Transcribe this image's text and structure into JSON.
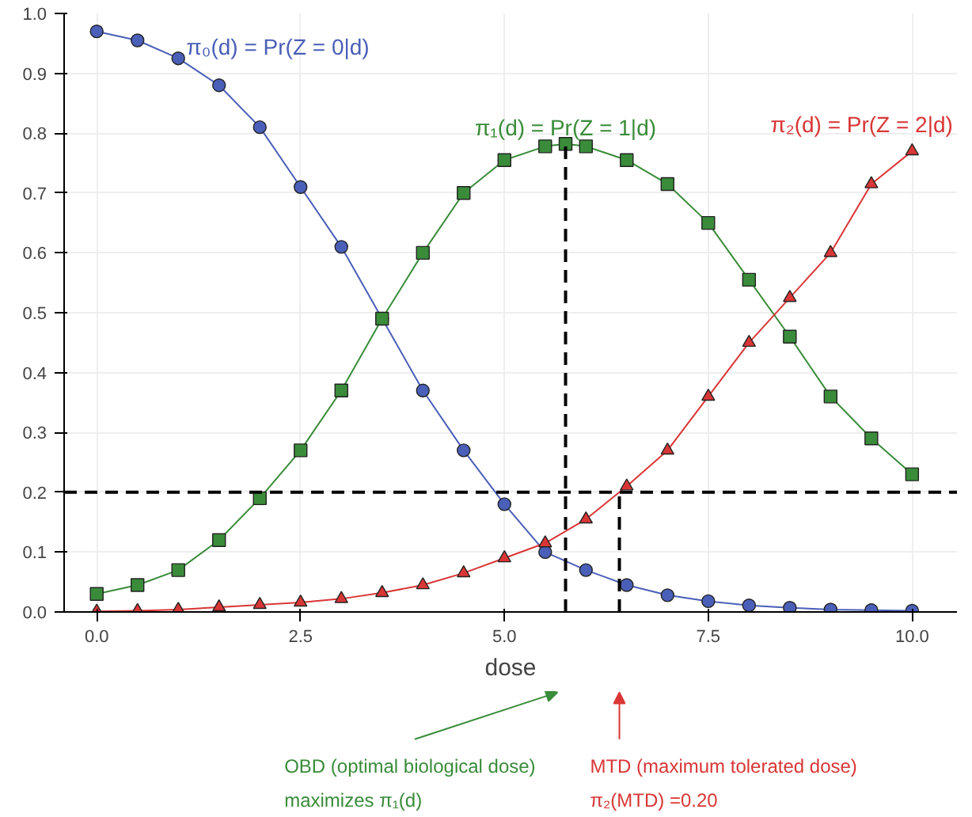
{
  "chart_data": {
    "type": "line",
    "xlabel": "dose",
    "xlim": [
      -0.4,
      10.55
    ],
    "ylim": [
      0,
      1.0
    ],
    "xticks": [
      {
        "value": 0,
        "label": "0.0"
      },
      2.5,
      {
        "value": 5,
        "label": "5.0"
      },
      7.5,
      {
        "value": 10,
        "label": "10.0"
      }
    ],
    "yticks": [
      {
        "value": 0,
        "label": "0.0"
      },
      0.1,
      0.2,
      0.3,
      0.4,
      0.5,
      0.6,
      0.7,
      0.8,
      0.9,
      {
        "value": 1,
        "label": "1.0"
      }
    ],
    "grid": true,
    "series": [
      {
        "name": "π₀(d) = Pr(Z = 0|d)",
        "color": "#4a5fb8",
        "marker": "circle",
        "x": [
          0,
          0.5,
          1,
          1.5,
          2,
          2.5,
          3,
          3.5,
          4,
          4.5,
          5,
          5.5,
          6,
          6.5,
          7,
          7.5,
          8,
          8.5,
          9,
          9.5,
          10
        ],
        "values": [
          0.97,
          0.955,
          0.925,
          0.88,
          0.81,
          0.71,
          0.61,
          0.49,
          0.37,
          0.27,
          0.18,
          0.1,
          0.07,
          0.045,
          0.028,
          0.018,
          0.011,
          0.007,
          0.004,
          0.003,
          0.002
        ]
      },
      {
        "name": "π₁(d) = Pr(Z = 1|d)",
        "color": "#3a8c3a",
        "marker": "square",
        "x": [
          0,
          0.5,
          1,
          1.5,
          2,
          2.5,
          3,
          3.5,
          4,
          4.5,
          5,
          5.5,
          5.75,
          6,
          6.5,
          7,
          7.5,
          8,
          8.5,
          9,
          9.5,
          10
        ],
        "values": [
          0.03,
          0.045,
          0.07,
          0.12,
          0.19,
          0.27,
          0.37,
          0.49,
          0.6,
          0.7,
          0.755,
          0.778,
          0.782,
          0.778,
          0.755,
          0.715,
          0.65,
          0.555,
          0.46,
          0.36,
          0.29,
          0.23
        ]
      },
      {
        "name": "π₂(d) = Pr(Z = 2|d)",
        "color": "#d93636",
        "marker": "triangle",
        "x": [
          0,
          0.5,
          1,
          1.5,
          2,
          2.5,
          3,
          3.5,
          4,
          4.5,
          5,
          5.5,
          6,
          6.5,
          7,
          7.5,
          8,
          8.5,
          9,
          9.5,
          10
        ],
        "values": [
          0.001,
          0.002,
          0.004,
          0.008,
          0.012,
          0.016,
          0.022,
          0.032,
          0.045,
          0.065,
          0.09,
          0.115,
          0.155,
          0.21,
          0.27,
          0.36,
          0.45,
          0.525,
          0.6,
          0.715,
          0.77
        ]
      },
      {
        "color": "#000000",
        "marker": "none",
        "line_style": "dashed",
        "x": [
          5.75,
          5.75
        ],
        "values": [
          0,
          0.782
        ]
      },
      {
        "color": "#000000",
        "marker": "none",
        "line_style": "dashed",
        "x": [
          6.41,
          6.41
        ],
        "values": [
          0,
          0.2
        ]
      }
    ],
    "ref_lines": [
      {
        "axis": "y",
        "value": 0.2,
        "color": "#000000",
        "line_style": "dashed"
      }
    ],
    "annotations": [
      "OBD (optimal biological dose)\nmaximizes π₁(d)",
      "MTD (maximum tolerated dose)\nπ₂(MTD) =0.20"
    ]
  }
}
